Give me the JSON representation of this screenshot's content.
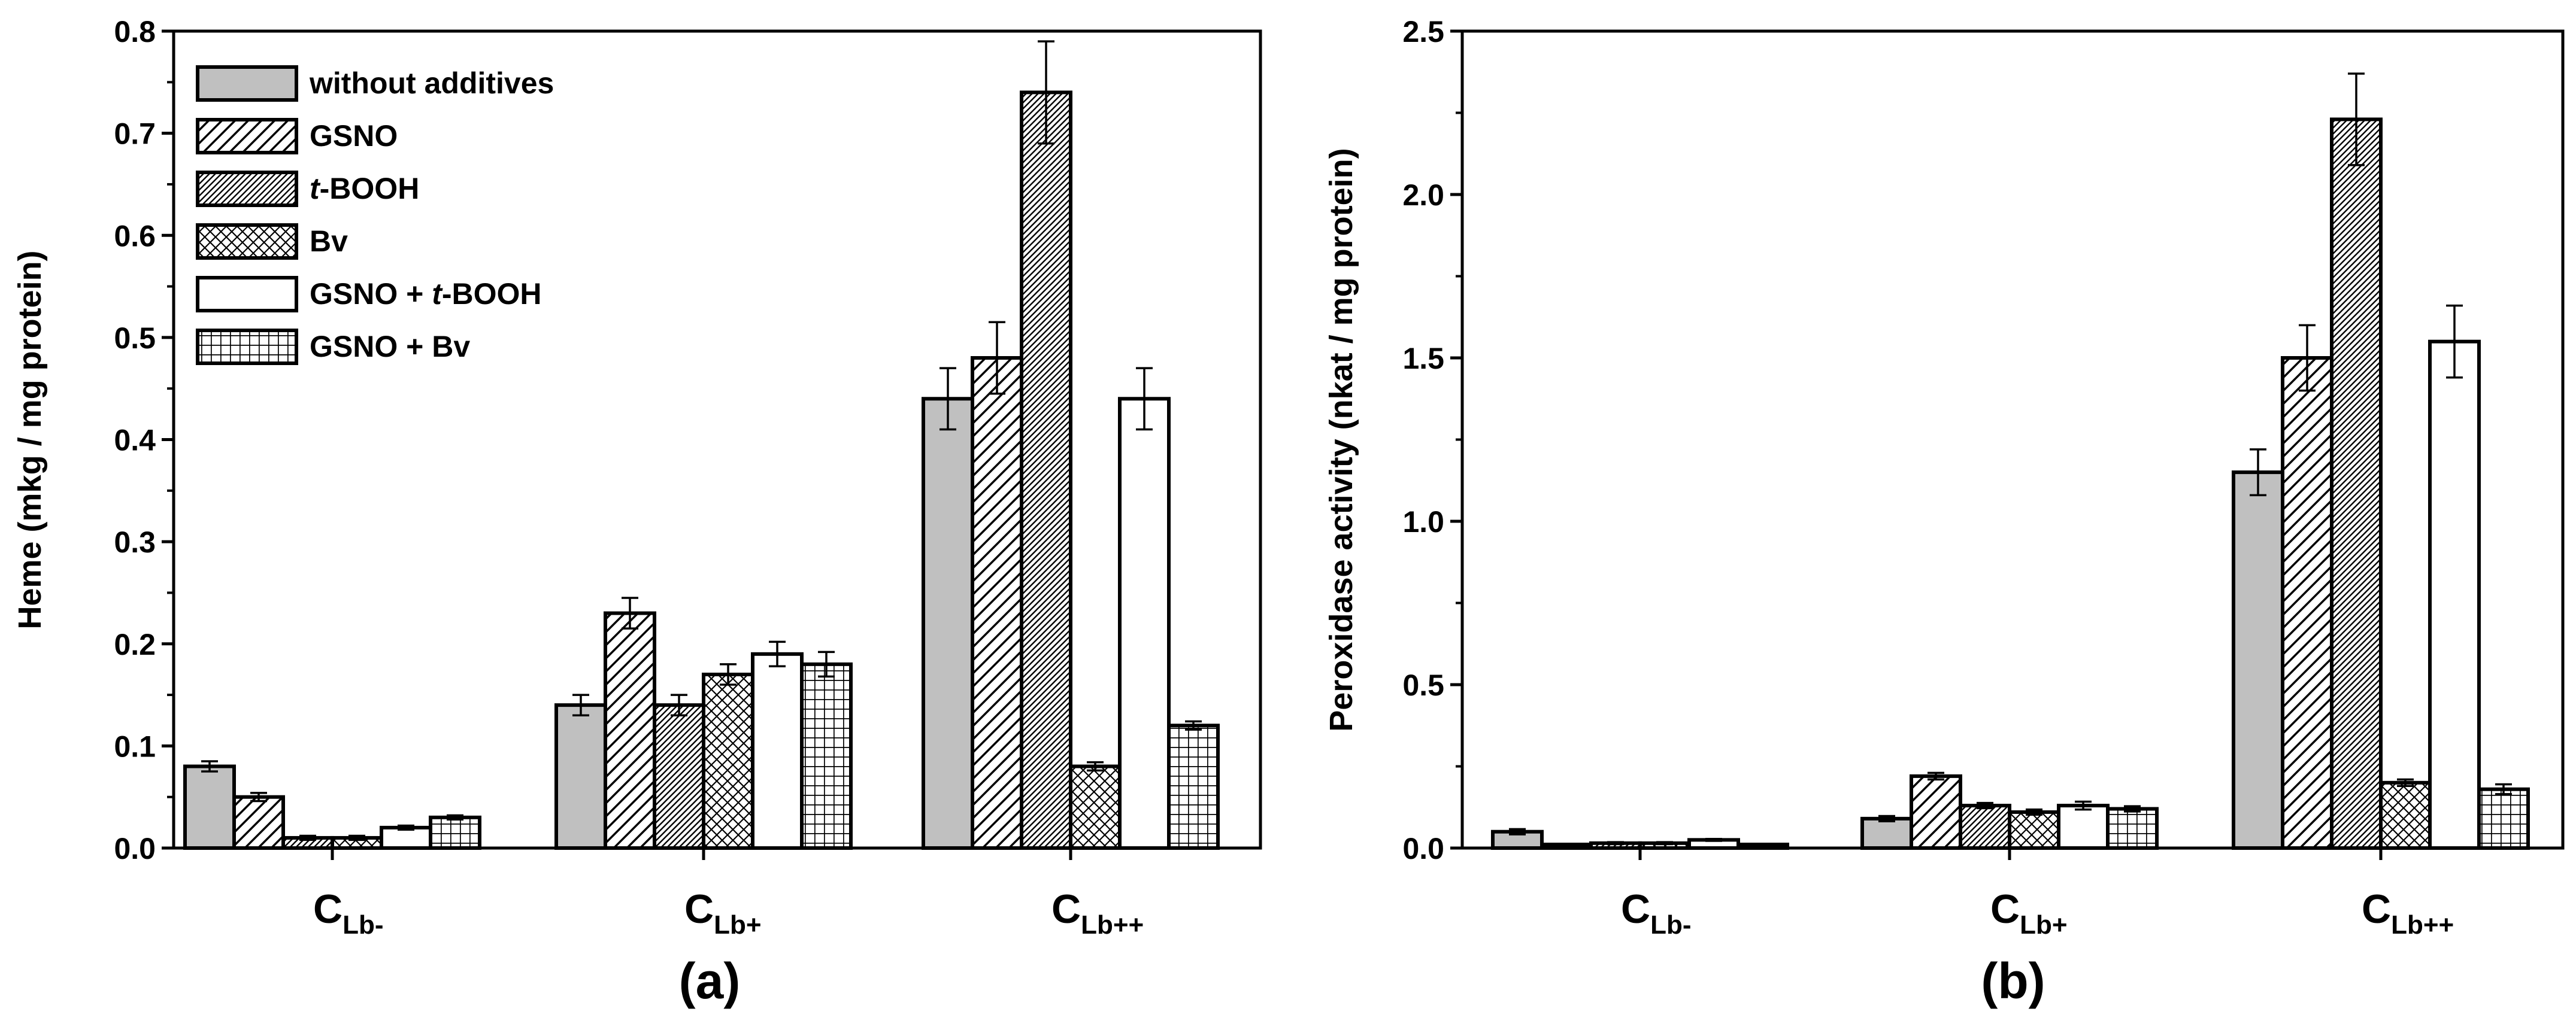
{
  "colors": {
    "gray": "#c0c0c0",
    "white": "#ffffff",
    "black": "#000000"
  },
  "legend": [
    {
      "label": "without additives",
      "pattern": "gray",
      "italic": "",
      "rest": ""
    },
    {
      "label": "GSNO",
      "pattern": "diag-sparse",
      "italic": "",
      "rest": ""
    },
    {
      "label": "t-BOOH",
      "pattern": "diag-dense",
      "italic": "t",
      "rest": "-BOOH"
    },
    {
      "label": "Bv",
      "pattern": "crosshatch",
      "italic": "",
      "rest": ""
    },
    {
      "label": "GSNO + t-BOOH",
      "pattern": "white",
      "italic": "t",
      "rest": "-BOOH",
      "prefix": "GSNO + "
    },
    {
      "label": "GSNO + Bv",
      "pattern": "grid",
      "italic": "",
      "rest": ""
    }
  ],
  "chart_data": [
    {
      "id": "a",
      "type": "bar",
      "panel_label": "(a)",
      "ylabel": "Heme (mkg / mg protein)",
      "ylim": [
        0,
        0.8
      ],
      "yticks": [
        "0.0",
        "0.1",
        "0.2",
        "0.3",
        "0.4",
        "0.5",
        "0.6",
        "0.7",
        "0.8"
      ],
      "categories": [
        {
          "main": "C",
          "sub": "Lb-"
        },
        {
          "main": "C",
          "sub": "Lb+"
        },
        {
          "main": "C",
          "sub": "Lb++"
        }
      ],
      "series": [
        {
          "name": "without additives",
          "values": [
            0.08,
            0.14,
            0.44
          ],
          "errors": [
            0.005,
            0.01,
            0.03
          ]
        },
        {
          "name": "GSNO",
          "values": [
            0.05,
            0.23,
            0.48
          ],
          "errors": [
            0.004,
            0.015,
            0.035
          ]
        },
        {
          "name": "t-BOOH",
          "values": [
            0.01,
            0.14,
            0.74
          ],
          "errors": [
            0.002,
            0.01,
            0.05
          ]
        },
        {
          "name": "Bv",
          "values": [
            0.01,
            0.17,
            0.08
          ],
          "errors": [
            0.002,
            0.01,
            0.004
          ]
        },
        {
          "name": "GSNO + t-BOOH",
          "values": [
            0.02,
            0.19,
            0.44
          ],
          "errors": [
            0.002,
            0.012,
            0.03
          ]
        },
        {
          "name": "GSNO + Bv",
          "values": [
            0.03,
            0.18,
            0.12
          ],
          "errors": [
            0.002,
            0.012,
            0.004
          ]
        }
      ]
    },
    {
      "id": "b",
      "type": "bar",
      "panel_label": "(b)",
      "ylabel": "Peroxidase activity (nkat / mg protein)",
      "ylim": [
        0,
        2.5
      ],
      "yticks": [
        "0.0",
        "0.5",
        "1.0",
        "1.5",
        "2.0",
        "2.5"
      ],
      "categories": [
        {
          "main": "C",
          "sub": "Lb-"
        },
        {
          "main": "C",
          "sub": "Lb+"
        },
        {
          "main": "C",
          "sub": "Lb++"
        }
      ],
      "series": [
        {
          "name": "without additives",
          "values": [
            0.05,
            0.09,
            1.15
          ],
          "errors": [
            0.008,
            0.008,
            0.07
          ]
        },
        {
          "name": "GSNO",
          "values": [
            0.005,
            0.22,
            1.5
          ],
          "errors": [
            0.003,
            0.01,
            0.1
          ]
        },
        {
          "name": "t-BOOH",
          "values": [
            0.015,
            0.13,
            2.23
          ],
          "errors": [
            0.003,
            0.008,
            0.14
          ]
        },
        {
          "name": "Bv",
          "values": [
            0.015,
            0.11,
            0.2
          ],
          "errors": [
            0.003,
            0.008,
            0.01
          ]
        },
        {
          "name": "GSNO + t-BOOH",
          "values": [
            0.025,
            0.13,
            1.55
          ],
          "errors": [
            0.003,
            0.012,
            0.11
          ]
        },
        {
          "name": "GSNO + Bv",
          "values": [
            0.005,
            0.12,
            0.18
          ],
          "errors": [
            0.003,
            0.008,
            0.015
          ]
        }
      ]
    }
  ]
}
